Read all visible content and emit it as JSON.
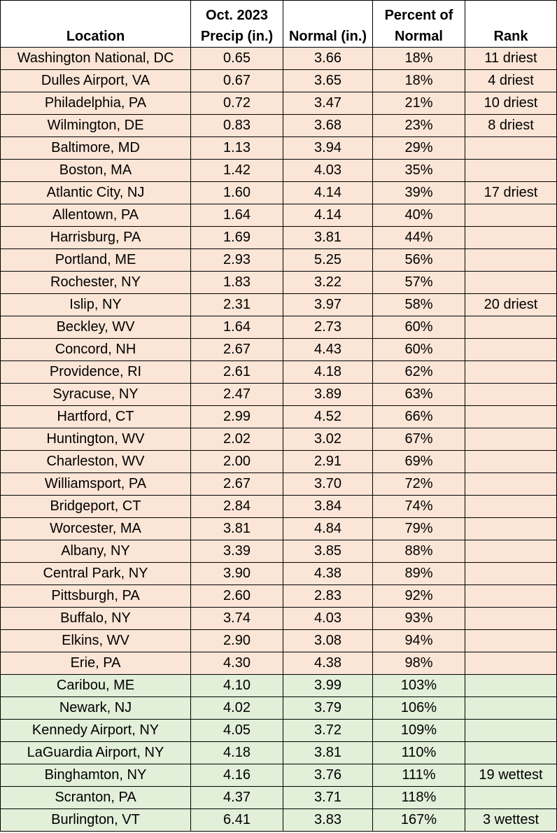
{
  "headers": {
    "location": "Location",
    "precip_line1": "Oct. 2023",
    "precip_line2": "Precip (in.)",
    "normal": "Normal (in.)",
    "percent_line1": "Percent of",
    "percent_line2": "Normal",
    "rank": "Rank"
  },
  "rows": [
    {
      "location": "Washington National, DC",
      "precip": "0.65",
      "normal": "3.66",
      "percent": "18%",
      "rank": "11 driest",
      "group": "dry"
    },
    {
      "location": "Dulles Airport, VA",
      "precip": "0.67",
      "normal": "3.65",
      "percent": "18%",
      "rank": "4 driest",
      "group": "dry"
    },
    {
      "location": "Philadelphia, PA",
      "precip": "0.72",
      "normal": "3.47",
      "percent": "21%",
      "rank": "10 driest",
      "group": "dry"
    },
    {
      "location": "Wilmington, DE",
      "precip": "0.83",
      "normal": "3.68",
      "percent": "23%",
      "rank": "8 driest",
      "group": "dry"
    },
    {
      "location": "Baltimore, MD",
      "precip": "1.13",
      "normal": "3.94",
      "percent": "29%",
      "rank": "",
      "group": "dry"
    },
    {
      "location": "Boston, MA",
      "precip": "1.42",
      "normal": "4.03",
      "percent": "35%",
      "rank": "",
      "group": "dry"
    },
    {
      "location": "Atlantic City, NJ",
      "precip": "1.60",
      "normal": "4.14",
      "percent": "39%",
      "rank": "17 driest",
      "group": "dry"
    },
    {
      "location": "Allentown, PA",
      "precip": "1.64",
      "normal": "4.14",
      "percent": "40%",
      "rank": "",
      "group": "dry"
    },
    {
      "location": "Harrisburg, PA",
      "precip": "1.69",
      "normal": "3.81",
      "percent": "44%",
      "rank": "",
      "group": "dry"
    },
    {
      "location": "Portland, ME",
      "precip": "2.93",
      "normal": "5.25",
      "percent": "56%",
      "rank": "",
      "group": "dry"
    },
    {
      "location": "Rochester, NY",
      "precip": "1.83",
      "normal": "3.22",
      "percent": "57%",
      "rank": "",
      "group": "dry"
    },
    {
      "location": "Islip, NY",
      "precip": "2.31",
      "normal": "3.97",
      "percent": "58%",
      "rank": "20 driest",
      "group": "dry"
    },
    {
      "location": "Beckley, WV",
      "precip": "1.64",
      "normal": "2.73",
      "percent": "60%",
      "rank": "",
      "group": "dry"
    },
    {
      "location": "Concord, NH",
      "precip": "2.67",
      "normal": "4.43",
      "percent": "60%",
      "rank": "",
      "group": "dry"
    },
    {
      "location": "Providence, RI",
      "precip": "2.61",
      "normal": "4.18",
      "percent": "62%",
      "rank": "",
      "group": "dry"
    },
    {
      "location": "Syracuse, NY",
      "precip": "2.47",
      "normal": "3.89",
      "percent": "63%",
      "rank": "",
      "group": "dry"
    },
    {
      "location": "Hartford, CT",
      "precip": "2.99",
      "normal": "4.52",
      "percent": "66%",
      "rank": "",
      "group": "dry"
    },
    {
      "location": "Huntington, WV",
      "precip": "2.02",
      "normal": "3.02",
      "percent": "67%",
      "rank": "",
      "group": "dry"
    },
    {
      "location": "Charleston, WV",
      "precip": "2.00",
      "normal": "2.91",
      "percent": "69%",
      "rank": "",
      "group": "dry"
    },
    {
      "location": "Williamsport, PA",
      "precip": "2.67",
      "normal": "3.70",
      "percent": "72%",
      "rank": "",
      "group": "dry"
    },
    {
      "location": "Bridgeport, CT",
      "precip": "2.84",
      "normal": "3.84",
      "percent": "74%",
      "rank": "",
      "group": "dry"
    },
    {
      "location": "Worcester, MA",
      "precip": "3.81",
      "normal": "4.84",
      "percent": "79%",
      "rank": "",
      "group": "dry"
    },
    {
      "location": "Albany, NY",
      "precip": "3.39",
      "normal": "3.85",
      "percent": "88%",
      "rank": "",
      "group": "dry"
    },
    {
      "location": "Central Park, NY",
      "precip": "3.90",
      "normal": "4.38",
      "percent": "89%",
      "rank": "",
      "group": "dry"
    },
    {
      "location": "Pittsburgh, PA",
      "precip": "2.60",
      "normal": "2.83",
      "percent": "92%",
      "rank": "",
      "group": "dry"
    },
    {
      "location": "Buffalo, NY",
      "precip": "3.74",
      "normal": "4.03",
      "percent": "93%",
      "rank": "",
      "group": "dry"
    },
    {
      "location": "Elkins, WV",
      "precip": "2.90",
      "normal": "3.08",
      "percent": "94%",
      "rank": "",
      "group": "dry"
    },
    {
      "location": "Erie, PA",
      "precip": "4.30",
      "normal": "4.38",
      "percent": "98%",
      "rank": "",
      "group": "dry"
    },
    {
      "location": "Caribou, ME",
      "precip": "4.10",
      "normal": "3.99",
      "percent": "103%",
      "rank": "",
      "group": "wet"
    },
    {
      "location": "Newark, NJ",
      "precip": "4.02",
      "normal": "3.79",
      "percent": "106%",
      "rank": "",
      "group": "wet"
    },
    {
      "location": "Kennedy Airport, NY",
      "precip": "4.05",
      "normal": "3.72",
      "percent": "109%",
      "rank": "",
      "group": "wet"
    },
    {
      "location": "LaGuardia Airport, NY",
      "precip": "4.18",
      "normal": "3.81",
      "percent": "110%",
      "rank": "",
      "group": "wet"
    },
    {
      "location": "Binghamton, NY",
      "precip": "4.16",
      "normal": "3.76",
      "percent": "111%",
      "rank": "19 wettest",
      "group": "wet"
    },
    {
      "location": "Scranton, PA",
      "precip": "4.37",
      "normal": "3.71",
      "percent": "118%",
      "rank": "",
      "group": "wet"
    },
    {
      "location": "Burlington, VT",
      "precip": "6.41",
      "normal": "3.83",
      "percent": "167%",
      "rank": "3 wettest",
      "group": "wet"
    }
  ]
}
